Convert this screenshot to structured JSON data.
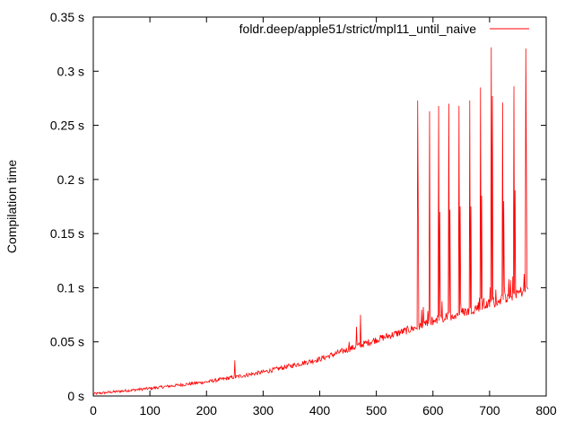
{
  "chart_data": {
    "type": "line",
    "title": "",
    "xlabel": "",
    "ylabel": "Compilation time",
    "xlim": [
      0,
      800
    ],
    "ylim": [
      0,
      0.35
    ],
    "x_ticks": [
      0,
      100,
      200,
      300,
      400,
      500,
      600,
      700,
      800
    ],
    "x_tick_labels": [
      "0",
      "100",
      "200",
      "300",
      "400",
      "500",
      "600",
      "700",
      "800"
    ],
    "y_ticks": [
      0,
      0.05,
      0.1,
      0.15,
      0.2,
      0.25,
      0.3,
      0.35
    ],
    "y_tick_labels": [
      "0 s",
      "0.05 s",
      "0.1 s",
      "0.15 s",
      "0.2 s",
      "0.25 s",
      "0.3 s",
      "0.35 s"
    ],
    "grid": false,
    "legend_position": "top-right",
    "series": [
      {
        "name": "foldr.deep/apple51/strict/mpl11_until_naive",
        "color": "#ff0000",
        "x_range": [
          0,
          768
        ],
        "baseline": [
          [
            0,
            0.002
          ],
          [
            100,
            0.007
          ],
          [
            200,
            0.013
          ],
          [
            300,
            0.022
          ],
          [
            400,
            0.034
          ],
          [
            500,
            0.052
          ],
          [
            575,
            0.064
          ],
          [
            600,
            0.069
          ],
          [
            650,
            0.077
          ],
          [
            700,
            0.085
          ],
          [
            750,
            0.095
          ],
          [
            768,
            0.099
          ]
        ],
        "spikes": [
          [
            250,
            0.033
          ],
          [
            452,
            0.05
          ],
          [
            465,
            0.064
          ],
          [
            472,
            0.075
          ],
          [
            573,
            0.273
          ],
          [
            574,
            0.172
          ],
          [
            594,
            0.263
          ],
          [
            610,
            0.268
          ],
          [
            612,
            0.17
          ],
          [
            628,
            0.27
          ],
          [
            630,
            0.172
          ],
          [
            646,
            0.268
          ],
          [
            648,
            0.175
          ],
          [
            665,
            0.273
          ],
          [
            667,
            0.175
          ],
          [
            684,
            0.285
          ],
          [
            686,
            0.185
          ],
          [
            703,
            0.322
          ],
          [
            705,
            0.277
          ],
          [
            723,
            0.271
          ],
          [
            725,
            0.18
          ],
          [
            743,
            0.286
          ],
          [
            745,
            0.19
          ],
          [
            764,
            0.321
          ],
          [
            765,
            0.214
          ]
        ]
      }
    ]
  }
}
